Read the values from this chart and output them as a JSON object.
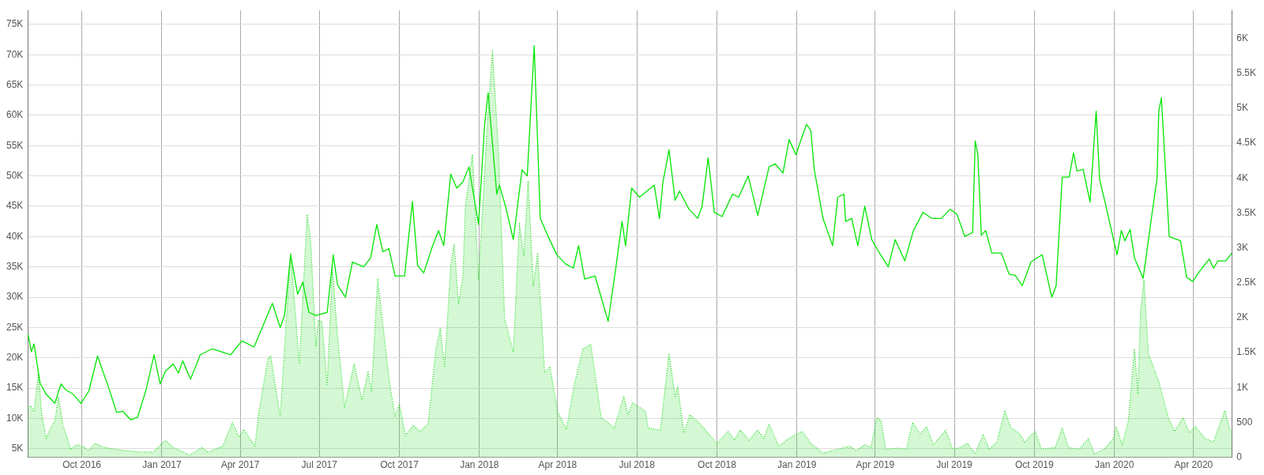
{
  "chart_data": {
    "type": "line",
    "xlim": [
      "2016-07-31",
      "2020-05-15"
    ],
    "xticks": [
      {
        "value": "2016-10-01",
        "label": "Oct 2016"
      },
      {
        "value": "2017-01-01",
        "label": "Jan 2017"
      },
      {
        "value": "2017-04-01",
        "label": "Apr 2017"
      },
      {
        "value": "2017-07-01",
        "label": "Jul 2017"
      },
      {
        "value": "2017-10-01",
        "label": "Oct 2017"
      },
      {
        "value": "2018-01-01",
        "label": "Jan 2018"
      },
      {
        "value": "2018-04-01",
        "label": "Apr 2018"
      },
      {
        "value": "2018-07-01",
        "label": "Jul 2018"
      },
      {
        "value": "2018-10-01",
        "label": "Oct 2018"
      },
      {
        "value": "2019-01-01",
        "label": "Jan 2019"
      },
      {
        "value": "2019-04-01",
        "label": "Apr 2019"
      },
      {
        "value": "2019-07-01",
        "label": "Jul 2019"
      },
      {
        "value": "2019-10-01",
        "label": "Oct 2019"
      },
      {
        "value": "2020-01-01",
        "label": "Jan 2020"
      },
      {
        "value": "2020-04-01",
        "label": "Apr 2020"
      }
    ],
    "ylim": [
      3600,
      77300
    ],
    "yticks": [
      {
        "value": 5000,
        "label": "5K"
      },
      {
        "value": 10000,
        "label": "10K"
      },
      {
        "value": 15000,
        "label": "15K"
      },
      {
        "value": 20000,
        "label": "20K"
      },
      {
        "value": 25000,
        "label": "25K"
      },
      {
        "value": 30000,
        "label": "30K"
      },
      {
        "value": 35000,
        "label": "35K"
      },
      {
        "value": 40000,
        "label": "40K"
      },
      {
        "value": 45000,
        "label": "45K"
      },
      {
        "value": 50000,
        "label": "50K"
      },
      {
        "value": 55000,
        "label": "55K"
      },
      {
        "value": 60000,
        "label": "60K"
      },
      {
        "value": 65000,
        "label": "65K"
      },
      {
        "value": 70000,
        "label": "70K"
      },
      {
        "value": 75000,
        "label": "75K"
      }
    ],
    "y2lim": [
      0,
      6400
    ],
    "y2ticks": [
      0,
      500,
      {
        "value": 1000,
        "label": "1K"
      },
      {
        "value": 1500,
        "label": "1.5K"
      },
      {
        "value": 2000,
        "label": "2K"
      },
      {
        "value": 2500,
        "label": "2.5K"
      },
      {
        "value": 3000,
        "label": "3K"
      },
      {
        "value": 3500,
        "label": "3.5K"
      },
      {
        "value": 4000,
        "label": "4K"
      },
      {
        "value": 4500,
        "label": "4.5K"
      },
      {
        "value": 5000,
        "label": "5K"
      },
      {
        "value": 5500,
        "label": "5.5K"
      },
      {
        "value": 6000,
        "label": "6K"
      }
    ],
    "grid": true,
    "marker": "none",
    "series": [
      {
        "type": "area",
        "axis": "y2",
        "color": "#22dd22",
        "line_style": "dotted",
        "x": [
          "2016-07-31",
          "2016-08-03",
          "2016-08-07",
          "2016-08-12",
          "2016-08-16",
          "2016-08-21",
          "2016-08-27",
          "2016-08-31",
          "2016-09-04",
          "2016-09-09",
          "2016-09-18",
          "2016-09-25",
          "2016-10-02",
          "2016-10-09",
          "2016-10-16",
          "2016-10-27",
          "2016-11-17",
          "2016-12-08",
          "2016-12-22",
          "2017-01-05",
          "2017-01-14",
          "2017-02-02",
          "2017-02-16",
          "2017-02-23",
          "2017-03-12",
          "2017-03-23",
          "2017-03-31",
          "2017-04-05",
          "2017-04-18",
          "2017-04-22",
          "2017-05-03",
          "2017-05-06",
          "2017-05-17",
          "2017-05-29",
          "2017-06-08",
          "2017-06-17",
          "2017-06-21",
          "2017-06-27",
          "2017-06-30",
          "2017-07-04",
          "2017-07-10",
          "2017-07-16",
          "2017-07-22",
          "2017-07-30",
          "2017-08-10",
          "2017-08-19",
          "2017-08-26",
          "2017-08-30",
          "2017-09-06",
          "2017-09-12",
          "2017-09-20",
          "2017-09-26",
          "2017-10-01",
          "2017-10-08",
          "2017-10-17",
          "2017-10-25",
          "2017-11-03",
          "2017-11-12",
          "2017-11-17",
          "2017-11-22",
          "2017-11-29",
          "2017-12-03",
          "2017-12-08",
          "2017-12-13",
          "2017-12-16",
          "2017-12-24",
          "2017-12-31",
          "2018-01-03",
          "2018-01-10",
          "2018-01-16",
          "2018-01-23",
          "2018-01-30",
          "2018-02-09",
          "2018-02-16",
          "2018-02-21",
          "2018-02-26",
          "2018-03-04",
          "2018-03-09",
          "2018-03-17",
          "2018-03-23",
          "2018-04-01",
          "2018-04-11",
          "2018-04-20",
          "2018-04-30",
          "2018-05-09",
          "2018-05-21",
          "2018-06-05",
          "2018-06-16",
          "2018-06-21",
          "2018-06-26",
          "2018-07-06",
          "2018-07-11",
          "2018-07-14",
          "2018-07-28",
          "2018-08-07",
          "2018-08-14",
          "2018-08-17",
          "2018-08-24",
          "2018-08-31",
          "2018-09-10",
          "2018-10-01",
          "2018-10-14",
          "2018-10-21",
          "2018-10-28",
          "2018-11-07",
          "2018-11-17",
          "2018-11-24",
          "2018-11-30",
          "2018-12-11",
          "2018-12-25",
          "2019-01-07",
          "2019-01-17",
          "2019-01-31",
          "2019-02-17",
          "2019-03-03",
          "2019-03-10",
          "2019-03-20",
          "2019-03-27",
          "2019-04-03",
          "2019-04-08",
          "2019-04-13",
          "2019-04-27",
          "2019-05-07",
          "2019-05-14",
          "2019-05-23",
          "2019-05-30",
          "2019-06-07",
          "2019-06-21",
          "2019-06-29",
          "2019-07-08",
          "2019-07-16",
          "2019-07-25",
          "2019-08-03",
          "2019-08-10",
          "2019-08-19",
          "2019-08-28",
          "2019-09-04",
          "2019-09-13",
          "2019-09-20",
          "2019-10-02",
          "2019-10-09",
          "2019-10-25",
          "2019-11-02",
          "2019-11-09",
          "2019-11-22",
          "2019-12-02",
          "2019-12-09",
          "2019-12-20",
          "2019-12-31",
          "2020-01-03",
          "2020-01-10",
          "2020-01-17",
          "2020-01-24",
          "2020-01-28",
          "2020-01-31",
          "2020-02-04",
          "2020-02-09",
          "2020-02-21",
          "2020-03-03",
          "2020-03-10",
          "2020-03-20",
          "2020-03-27",
          "2020-04-03",
          "2020-04-14",
          "2020-04-24",
          "2020-05-07",
          "2020-05-13",
          "2020-05-15"
        ],
        "values": [
          700,
          740,
          650,
          1210,
          610,
          270,
          440,
          520,
          870,
          480,
          115,
          180,
          160,
          95,
          200,
          140,
          100,
          75,
          75,
          245,
          140,
          30,
          140,
          75,
          160,
          500,
          290,
          400,
          160,
          610,
          1420,
          1450,
          590,
          2930,
          1340,
          3480,
          3100,
          1600,
          1960,
          1940,
          1040,
          2710,
          1720,
          720,
          1340,
          820,
          1230,
          950,
          2560,
          1900,
          1040,
          590,
          760,
          310,
          460,
          370,
          480,
          1550,
          1850,
          1300,
          2750,
          3050,
          2200,
          2580,
          3610,
          4340,
          2540,
          3180,
          4770,
          5820,
          4380,
          1980,
          1510,
          3350,
          2880,
          3960,
          2450,
          2930,
          1210,
          1300,
          650,
          400,
          1040,
          1550,
          1620,
          570,
          420,
          870,
          610,
          780,
          700,
          650,
          420,
          390,
          1490,
          870,
          1020,
          350,
          610,
          500,
          200,
          370,
          245,
          390,
          245,
          390,
          270,
          480,
          160,
          290,
          370,
          200,
          60,
          115,
          160,
          95,
          180,
          140,
          570,
          520,
          115,
          130,
          115,
          500,
          330,
          440,
          180,
          390,
          115,
          140,
          200,
          50,
          330,
          115,
          220,
          670,
          420,
          350,
          220,
          370,
          115,
          140,
          420,
          140,
          115,
          270,
          50,
          115,
          270,
          440,
          180,
          520,
          1550,
          910,
          2090,
          2540,
          1490,
          1080,
          570,
          370,
          570,
          350,
          440,
          270,
          220,
          670,
          390,
          370
        ]
      },
      {
        "type": "line",
        "axis": "y",
        "color": "#00e600",
        "line_style": "solid",
        "x": [
          "2016-07-31",
          "2016-08-04",
          "2016-08-07",
          "2016-08-14",
          "2016-08-21",
          "2016-08-31",
          "2016-09-07",
          "2016-09-12",
          "2016-09-21",
          "2016-09-30",
          "2016-10-09",
          "2016-10-19",
          "2016-11-01",
          "2016-11-10",
          "2016-11-17",
          "2016-11-26",
          "2016-12-04",
          "2016-12-14",
          "2016-12-23",
          "2016-12-30",
          "2017-01-05",
          "2017-01-14",
          "2017-01-20",
          "2017-01-25",
          "2017-02-03",
          "2017-02-14",
          "2017-02-28",
          "2017-03-21",
          "2017-04-03",
          "2017-04-17",
          "2017-05-08",
          "2017-05-17",
          "2017-05-22",
          "2017-05-29",
          "2017-06-06",
          "2017-06-12",
          "2017-06-19",
          "2017-06-27",
          "2017-07-10",
          "2017-07-17",
          "2017-07-22",
          "2017-07-31",
          "2017-08-08",
          "2017-08-21",
          "2017-08-29",
          "2017-09-05",
          "2017-09-12",
          "2017-09-19",
          "2017-09-26",
          "2017-10-07",
          "2017-10-16",
          "2017-10-22",
          "2017-10-29",
          "2017-11-07",
          "2017-11-15",
          "2017-11-21",
          "2017-11-29",
          "2017-12-06",
          "2017-12-13",
          "2017-12-20",
          "2017-12-31",
          "2018-01-07",
          "2018-01-11",
          "2018-01-21",
          "2018-01-24",
          "2018-01-31",
          "2018-02-09",
          "2018-02-19",
          "2018-02-25",
          "2018-03-05",
          "2018-03-12",
          "2018-03-21",
          "2018-03-31",
          "2018-04-10",
          "2018-04-19",
          "2018-04-25",
          "2018-05-02",
          "2018-05-14",
          "2018-05-29",
          "2018-06-07",
          "2018-06-14",
          "2018-06-18",
          "2018-06-25",
          "2018-07-04",
          "2018-07-21",
          "2018-07-27",
          "2018-07-31",
          "2018-08-07",
          "2018-08-14",
          "2018-08-19",
          "2018-08-30",
          "2018-09-09",
          "2018-09-14",
          "2018-09-21",
          "2018-09-28",
          "2018-10-07",
          "2018-10-19",
          "2018-10-26",
          "2018-11-06",
          "2018-11-17",
          "2018-11-30",
          "2018-12-07",
          "2018-12-16",
          "2018-12-23",
          "2018-12-31",
          "2019-01-07",
          "2019-01-12",
          "2019-01-17",
          "2019-01-21",
          "2019-01-31",
          "2019-02-11",
          "2019-02-17",
          "2019-02-24",
          "2019-02-26",
          "2019-03-05",
          "2019-03-12",
          "2019-03-20",
          "2019-03-28",
          "2019-04-05",
          "2019-04-16",
          "2019-04-24",
          "2019-05-05",
          "2019-05-15",
          "2019-05-26",
          "2019-06-05",
          "2019-06-16",
          "2019-06-26",
          "2019-07-04",
          "2019-07-13",
          "2019-07-22",
          "2019-07-25",
          "2019-07-28",
          "2019-08-01",
          "2019-08-06",
          "2019-08-13",
          "2019-08-24",
          "2019-09-02",
          "2019-09-09",
          "2019-09-17",
          "2019-09-27",
          "2019-10-02",
          "2019-10-10",
          "2019-10-21",
          "2019-10-26",
          "2019-11-02",
          "2019-11-10",
          "2019-11-15",
          "2019-11-19",
          "2019-11-26",
          "2019-12-04",
          "2019-12-11",
          "2019-12-15",
          "2019-12-22",
          "2019-12-27",
          "2020-01-04",
          "2020-01-09",
          "2020-01-13",
          "2020-01-19",
          "2020-01-24",
          "2020-02-03",
          "2020-02-12",
          "2020-02-19",
          "2020-02-21",
          "2020-02-24",
          "2020-03-04",
          "2020-03-17",
          "2020-03-24",
          "2020-03-31",
          "2020-04-08",
          "2020-04-19",
          "2020-04-24",
          "2020-04-29",
          "2020-05-08",
          "2020-05-15"
        ],
        "values": [
          24000,
          21000,
          22300,
          15800,
          14000,
          12500,
          15700,
          14800,
          14000,
          12500,
          14500,
          20300,
          15000,
          11000,
          11200,
          9800,
          10200,
          14800,
          20500,
          15700,
          17800,
          19000,
          17500,
          19500,
          16500,
          20500,
          21500,
          20500,
          22800,
          21800,
          29000,
          25000,
          27000,
          37000,
          30500,
          32500,
          27500,
          27000,
          27500,
          37000,
          32000,
          30000,
          35800,
          35000,
          36500,
          42000,
          37500,
          38000,
          33500,
          33500,
          45800,
          35200,
          34000,
          38000,
          41000,
          38500,
          50300,
          48000,
          49000,
          51500,
          42000,
          58500,
          63700,
          47000,
          48500,
          45000,
          39500,
          51000,
          50000,
          71500,
          43000,
          40000,
          37000,
          35500,
          34800,
          38500,
          33000,
          33500,
          26000,
          35000,
          42500,
          38500,
          48000,
          46500,
          48500,
          43000,
          49000,
          54300,
          46000,
          47500,
          44500,
          43000,
          45000,
          53000,
          44000,
          43300,
          47000,
          46500,
          50000,
          43500,
          51500,
          52000,
          50500,
          56000,
          53500,
          56500,
          58500,
          57500,
          51000,
          43000,
          38500,
          46500,
          47000,
          42500,
          43000,
          38500,
          45000,
          39500,
          37500,
          35000,
          39500,
          36000,
          41000,
          44000,
          43000,
          43000,
          44500,
          43700,
          40000,
          40700,
          55800,
          53500,
          40200,
          41000,
          37300,
          37300,
          33800,
          33600,
          31900,
          35800,
          36300,
          37000,
          30000,
          31900,
          49800,
          49800,
          53800,
          50800,
          51100,
          45700,
          60700,
          49400,
          45200,
          42000,
          37000,
          41000,
          39300,
          41200,
          36500,
          33100,
          42500,
          49600,
          60700,
          62900,
          40000,
          39300,
          33300,
          32600,
          34300,
          36300,
          34800,
          36000,
          36000,
          37300
        ]
      }
    ]
  }
}
